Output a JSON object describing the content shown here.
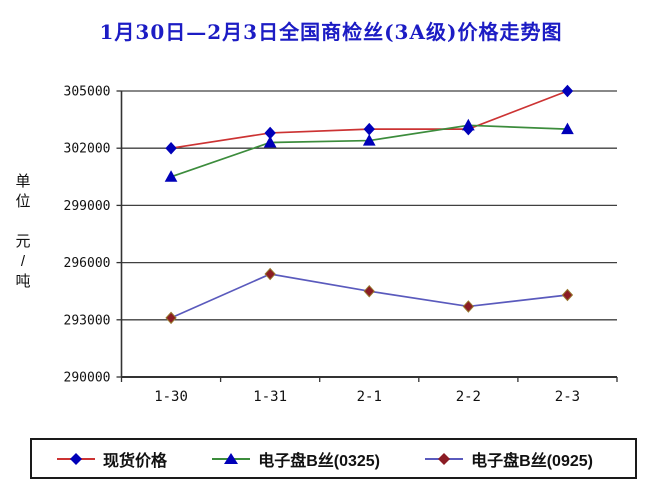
{
  "title": "1月30日—2月3日全国商检丝(3A级)价格走势图",
  "y_axis_unit_label": "单位\n\n元\n/\n吨",
  "chart_data": {
    "type": "line",
    "title": "1月30日—2月3日全国商检丝(3A级)价格走势图",
    "xlabel": "",
    "ylabel": "单位 元/吨",
    "categories": [
      "1-30",
      "1-31",
      "2-1",
      "2-2",
      "2-3"
    ],
    "y_ticks": [
      290000,
      293000,
      296000,
      299000,
      302000,
      305000
    ],
    "ylim": [
      290000,
      305000
    ],
    "grid": "horizontal",
    "legend_position": "bottom",
    "series": [
      {
        "name": "现货价格",
        "line_color": "#cc3333",
        "marker": "diamond",
        "marker_fill": "#0000b8",
        "marker_stroke": "#0000b8",
        "values": [
          302000,
          302800,
          303000,
          303000,
          305000
        ]
      },
      {
        "name": "电子盘B丝(0325)",
        "line_color": "#3c8c3c",
        "marker": "triangle",
        "marker_fill": "#0000b8",
        "marker_stroke": "#0000b8",
        "values": [
          300500,
          302300,
          302400,
          303200,
          303000
        ]
      },
      {
        "name": "电子盘B丝(0925)",
        "line_color": "#5a5abd",
        "marker": "diamond",
        "marker_fill": "#8b1c24",
        "marker_stroke": "#96772e",
        "values": [
          293100,
          295400,
          294500,
          293700,
          294300
        ]
      }
    ]
  },
  "colors": {
    "title": "#1c1cc4",
    "axis": "#333333",
    "gridline": "#404040",
    "tick_text": "#111111"
  }
}
